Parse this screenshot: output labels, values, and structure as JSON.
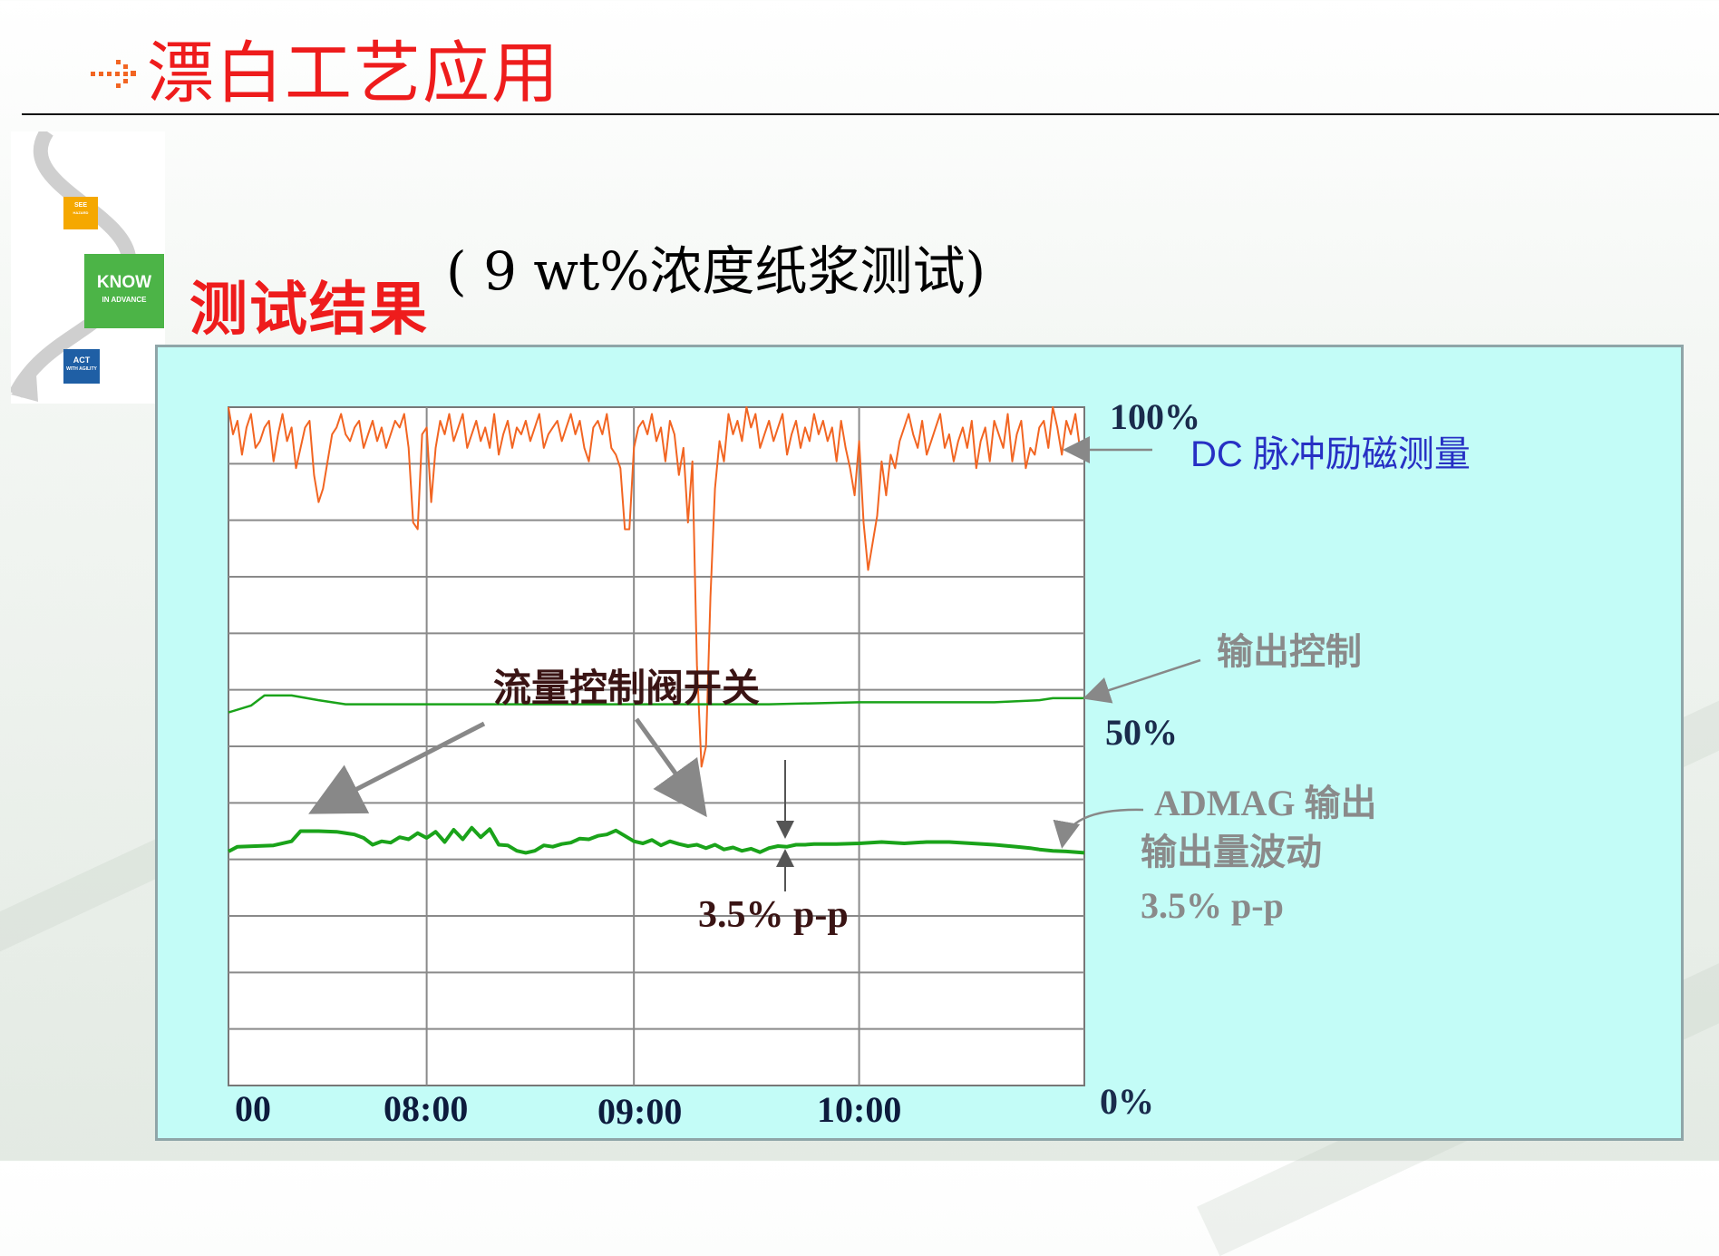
{
  "page": {
    "title": "漂白工艺应用",
    "section_label": "测试结果",
    "subtitle": "( 9 wt%浓度纸浆测试)"
  },
  "logo": {
    "see": "SEE",
    "see_sub": "HAZARD",
    "know": "KNOW",
    "know_sub": "IN ADVANCE",
    "act": "ACT",
    "act_sub": "WITH AGILITY"
  },
  "colors": {
    "title_red": "#ee1c1c",
    "panel_bg": "#c3fcf7",
    "dc_series": "#f26522",
    "output_series": "#1aa31a",
    "admag_series": "#1aa31a",
    "annotation_gray": "#8a8a8a",
    "annotation_blue": "#2730c4"
  },
  "chart_data": {
    "type": "line",
    "x_tick_labels": [
      "00",
      "08:00",
      "09:00",
      "10:00"
    ],
    "y_tick_labels": [
      "100%",
      "50%",
      "0%"
    ],
    "ylim": [
      0,
      100
    ],
    "grid": true,
    "x_range_minutes": [
      0,
      190
    ],
    "series": [
      {
        "name": "DC 脉冲励磁测量",
        "color": "#f26522",
        "x": [
          0,
          1,
          2,
          3,
          4,
          5,
          6,
          7,
          8,
          9,
          10,
          11,
          12,
          13,
          14,
          15,
          16,
          17,
          18,
          19,
          20,
          21,
          22,
          23,
          24,
          25,
          26,
          27,
          28,
          29,
          30,
          31,
          32,
          33,
          34,
          35,
          36,
          37,
          38,
          39,
          40,
          41,
          42,
          43,
          44,
          45,
          46,
          47,
          48,
          49,
          50,
          51,
          52,
          53,
          54,
          55,
          56,
          57,
          58,
          59,
          60,
          61,
          62,
          63,
          64,
          65,
          66,
          67,
          68,
          69,
          70,
          71,
          72,
          73,
          74,
          75,
          76,
          77,
          78,
          79,
          80,
          81,
          82,
          83,
          84,
          85,
          86,
          87,
          88,
          89,
          90,
          91,
          92,
          93,
          94,
          95,
          96,
          97,
          98,
          99,
          100,
          101,
          102,
          103,
          104,
          105,
          106,
          107,
          108,
          109,
          110,
          111,
          112,
          113,
          114,
          115,
          116,
          117,
          118,
          119,
          120,
          121,
          122,
          123,
          124,
          125,
          126,
          127,
          128,
          129,
          130,
          131,
          132,
          133,
          134,
          135,
          136,
          137,
          138,
          139,
          140,
          141,
          142,
          143,
          144,
          145,
          146,
          147,
          148,
          149,
          150,
          151,
          152,
          153,
          154,
          155,
          156,
          157,
          158,
          159,
          160,
          161,
          162,
          163,
          164,
          165,
          166,
          167,
          168,
          169,
          170,
          171,
          172,
          173,
          174,
          175,
          176,
          177,
          178,
          179,
          180,
          181,
          182,
          183,
          184,
          185,
          186,
          187,
          188,
          189,
          190
        ],
        "values": [
          100,
          96,
          98,
          93,
          97,
          99,
          94,
          95,
          97,
          98,
          92,
          96,
          99,
          95,
          97,
          91,
          94,
          97,
          98,
          90,
          86,
          88,
          92,
          96,
          97,
          99,
          96,
          95,
          97,
          98,
          94,
          96,
          98,
          95,
          97,
          94,
          96,
          98,
          97,
          99,
          94,
          83,
          82,
          96,
          97,
          86,
          94,
          98,
          96,
          99,
          95,
          97,
          99,
          94,
          96,
          98,
          95,
          97,
          94,
          99,
          93,
          96,
          98,
          94,
          97,
          96,
          98,
          95,
          97,
          99,
          94,
          96,
          97,
          98,
          95,
          97,
          99,
          96,
          98,
          94,
          92,
          97,
          98,
          96,
          99,
          94,
          93,
          91,
          82,
          82,
          94,
          97,
          98,
          96,
          99,
          95,
          97,
          92,
          98,
          96,
          90,
          94,
          83,
          92,
          62,
          47,
          50,
          72,
          88,
          95,
          92,
          99,
          96,
          98,
          95,
          100,
          97,
          99,
          94,
          96,
          98,
          95,
          97,
          99,
          93,
          96,
          98,
          94,
          97,
          95,
          99,
          96,
          98,
          95,
          97,
          92,
          98,
          94,
          91,
          87,
          95,
          83,
          76,
          80,
          84,
          92,
          87,
          93,
          91,
          95,
          97,
          99,
          96,
          94,
          98,
          93,
          95,
          97,
          99,
          94,
          96,
          92,
          95,
          97,
          94,
          98,
          91,
          95,
          97,
          92,
          98,
          96,
          94,
          99,
          92,
          96,
          98,
          91,
          94,
          93,
          97,
          98,
          94,
          100,
          97,
          93,
          98,
          96,
          99,
          94,
          95
        ]
      },
      {
        "name": "输出控制",
        "color": "#1aa31a",
        "x": [
          0,
          5,
          8,
          14,
          20,
          26,
          30,
          40,
          60,
          80,
          100,
          120,
          140,
          150,
          160,
          170,
          180,
          183,
          190
        ],
        "values": [
          55,
          56,
          57.5,
          57.5,
          56.8,
          56.2,
          56.2,
          56.2,
          56.2,
          56.2,
          56.2,
          56.2,
          56.5,
          56.5,
          56.5,
          56.5,
          56.8,
          57.1,
          57.1
        ]
      },
      {
        "name": "ADMAG 输出",
        "color": "#1aa31a",
        "x": [
          0,
          2,
          6,
          10,
          14,
          16,
          18,
          20,
          24,
          28,
          30,
          32,
          34,
          36,
          38,
          40,
          42,
          44,
          46,
          48,
          50,
          52,
          54,
          56,
          58,
          60,
          62,
          64,
          66,
          68,
          70,
          72,
          74,
          76,
          78,
          80,
          82,
          84,
          86,
          88,
          90,
          92,
          94,
          96,
          98,
          100,
          102,
          104,
          106,
          108,
          110,
          112,
          114,
          116,
          118,
          120,
          122,
          124,
          126,
          128,
          130,
          135,
          140,
          145,
          150,
          155,
          160,
          165,
          170,
          175,
          178,
          180,
          183,
          186,
          190
        ],
        "values": [
          34.5,
          35.2,
          35.3,
          35.4,
          36.0,
          37.5,
          37.5,
          37.5,
          37.4,
          37.0,
          36.5,
          35.5,
          36.0,
          35.8,
          36.6,
          36.3,
          37.2,
          36.5,
          37.4,
          35.9,
          37.7,
          36.3,
          38.0,
          36.6,
          37.8,
          35.5,
          35.4,
          34.6,
          34.3,
          34.6,
          35.4,
          35.2,
          35.6,
          35.8,
          36.4,
          36.3,
          36.8,
          37.0,
          37.6,
          36.8,
          36.0,
          35.7,
          36.2,
          35.4,
          36.0,
          35.6,
          35.3,
          35.5,
          35.0,
          35.5,
          34.8,
          35.1,
          34.6,
          34.9,
          34.4,
          35.0,
          35.3,
          35.2,
          35.5,
          35.5,
          35.6,
          35.6,
          35.7,
          35.9,
          35.7,
          35.9,
          35.9,
          35.7,
          35.5,
          35.2,
          35.0,
          34.8,
          34.6,
          34.5,
          34.3
        ]
      }
    ],
    "annotations": {
      "dc_label": "DC 脉冲励磁测量",
      "output_label": "输出控制",
      "valve_label": "流量控制阀开关",
      "pp_label": "3.5% p-p",
      "admag_label": "ADMAG 输出",
      "admag_fluct": "输出量波动",
      "admag_pp": "3.5% p-p"
    }
  }
}
